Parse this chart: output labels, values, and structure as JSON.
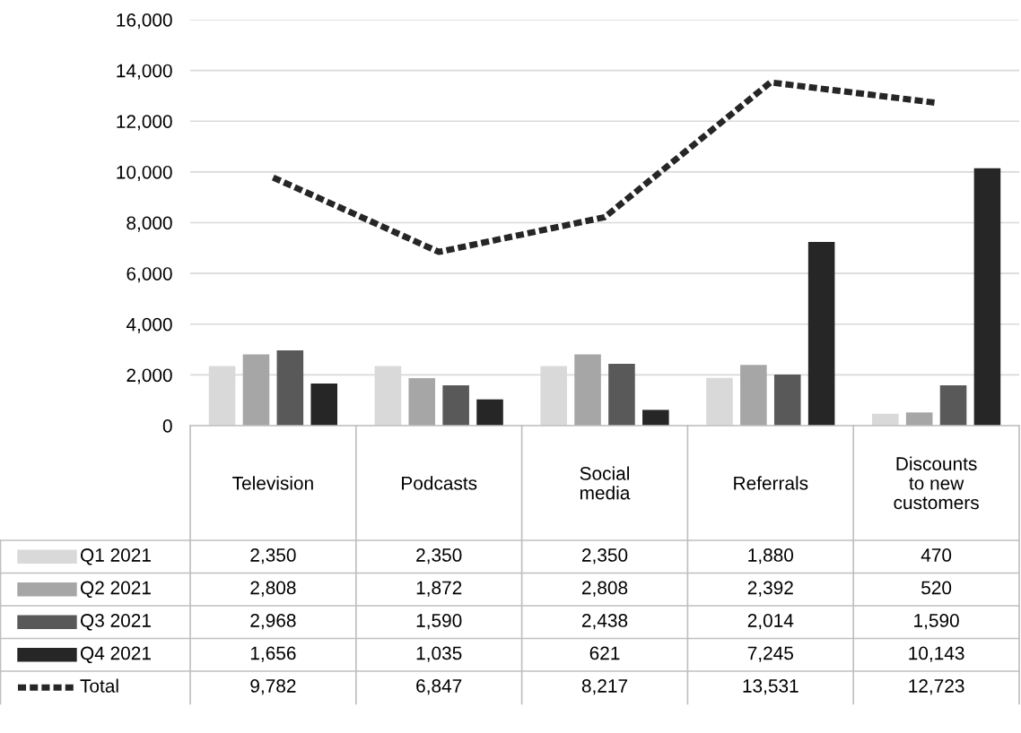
{
  "chart_data": {
    "type": "bar",
    "categories": [
      "Television",
      "Podcasts",
      "Social media",
      "Referrals",
      "Discounts to new customers"
    ],
    "series": [
      {
        "name": "Q1 2021",
        "color": "#d9d9d9",
        "values": [
          2350,
          2350,
          2350,
          1880,
          470
        ],
        "value_labels": [
          "2,350",
          "2,350",
          "2,350",
          "1,880",
          "470"
        ]
      },
      {
        "name": "Q2 2021",
        "color": "#a6a6a6",
        "values": [
          2808,
          1872,
          2808,
          2392,
          520
        ],
        "value_labels": [
          "2,808",
          "1,872",
          "2,808",
          "2,392",
          "520"
        ]
      },
      {
        "name": "Q3 2021",
        "color": "#595959",
        "values": [
          2968,
          1590,
          2438,
          2014,
          1590
        ],
        "value_labels": [
          "2,968",
          "1,590",
          "2,438",
          "2,014",
          "1,590"
        ]
      },
      {
        "name": "Q4 2021",
        "color": "#262626",
        "values": [
          1656,
          1035,
          621,
          7245,
          10143
        ],
        "value_labels": [
          "1,656",
          "1,035",
          "621",
          "7,245",
          "10,143"
        ]
      },
      {
        "name": "Total",
        "type": "line",
        "line_style": "dotted",
        "marker": "none",
        "color": "#262626",
        "values": [
          9782,
          6847,
          8217,
          13531,
          12723
        ],
        "value_labels": [
          "9,782",
          "6,847",
          "8,217",
          "13,531",
          "12,723"
        ]
      }
    ],
    "ylim": [
      0,
      16000
    ],
    "yticks": [
      {
        "value": 0,
        "label": "0"
      },
      {
        "value": 2000,
        "label": "2,000"
      },
      {
        "value": 4000,
        "label": "4,000"
      },
      {
        "value": 6000,
        "label": "6,000"
      },
      {
        "value": 8000,
        "label": "8,000"
      },
      {
        "value": 10000,
        "label": "10,000"
      },
      {
        "value": 12000,
        "label": "12,000"
      },
      {
        "value": 14000,
        "label": "14,000"
      },
      {
        "value": 16000,
        "label": "16,000"
      }
    ],
    "grid": "y",
    "legend": "bottom"
  }
}
